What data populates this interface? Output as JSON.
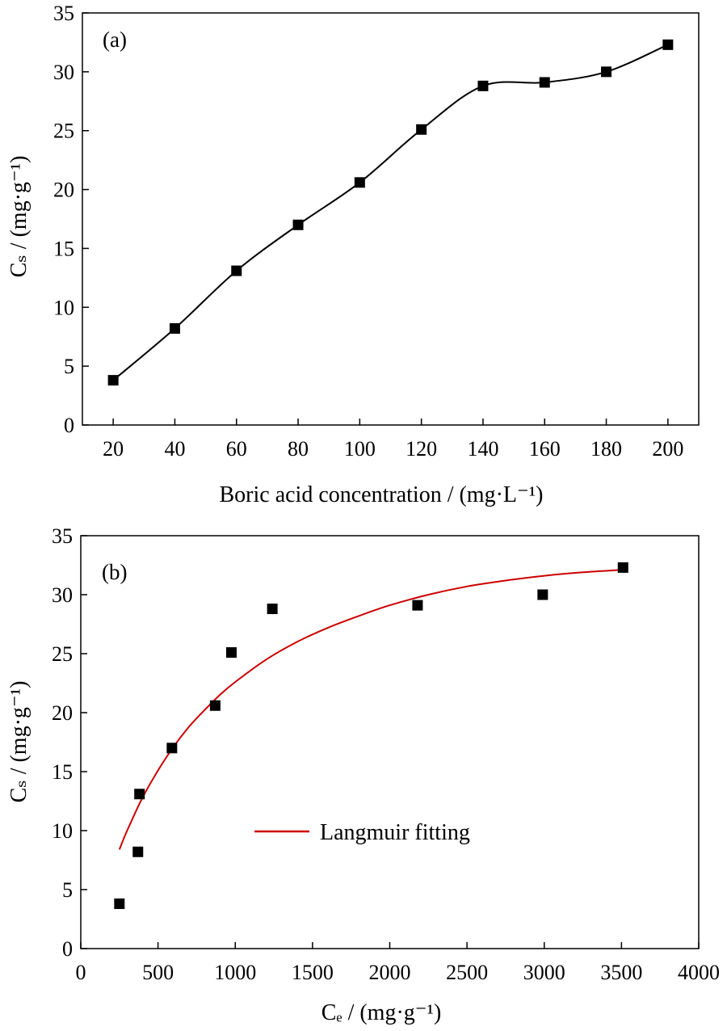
{
  "chart_data": [
    {
      "id": "a",
      "type": "line",
      "panel_label": "(a)",
      "xlabel": "Boric acid concentration / (mg·L⁻¹)",
      "ylabel": "Cₛ / (mg·g⁻¹)",
      "xlim": [
        10,
        210
      ],
      "ylim": [
        0,
        35
      ],
      "xticks": [
        20,
        40,
        60,
        80,
        100,
        120,
        140,
        160,
        180,
        200
      ],
      "yticks": [
        0,
        5,
        10,
        15,
        20,
        25,
        30,
        35
      ],
      "grid": false,
      "series": [
        {
          "marker": "square",
          "line": "smooth",
          "color": "#000000",
          "x": [
            20,
            40,
            60,
            80,
            100,
            120,
            140,
            160,
            180,
            200
          ],
          "y": [
            3.8,
            8.2,
            13.1,
            17.0,
            20.6,
            25.1,
            28.8,
            29.1,
            30.0,
            32.3
          ]
        }
      ]
    },
    {
      "id": "b",
      "type": "scatter",
      "panel_label": "(b)",
      "xlabel": "Cₑ / (mg·g⁻¹)",
      "ylabel": "Cₛ / (mg·g⁻¹)",
      "xlim": [
        0,
        4000
      ],
      "ylim": [
        0,
        35
      ],
      "xticks": [
        0,
        500,
        1000,
        1500,
        2000,
        2500,
        3000,
        3500,
        4000
      ],
      "yticks": [
        0,
        5,
        10,
        15,
        20,
        25,
        30,
        35
      ],
      "grid": false,
      "legend_position": "center",
      "series": [
        {
          "marker": "square",
          "color": "#000000",
          "x": [
            250,
            370,
            380,
            590,
            870,
            975,
            1240,
            2180,
            2990,
            3510
          ],
          "y": [
            3.8,
            8.2,
            13.1,
            17.0,
            20.6,
            25.1,
            28.8,
            29.1,
            30.0,
            32.3
          ]
        },
        {
          "name": "Langmuir fitting",
          "line": "solid",
          "color": "#cc0000",
          "x": [
            250,
            300,
            400,
            500,
            600,
            700,
            800,
            900,
            1000,
            1200,
            1400,
            1600,
            1800,
            2000,
            2250,
            2500,
            2750,
            3000,
            3250,
            3500
          ],
          "y": [
            8.4,
            10.0,
            12.8,
            15.1,
            17.1,
            18.8,
            20.2,
            21.5,
            22.6,
            24.5,
            26.0,
            27.2,
            28.2,
            29.1,
            30.0,
            30.7,
            31.2,
            31.6,
            31.9,
            32.1
          ]
        }
      ]
    }
  ]
}
